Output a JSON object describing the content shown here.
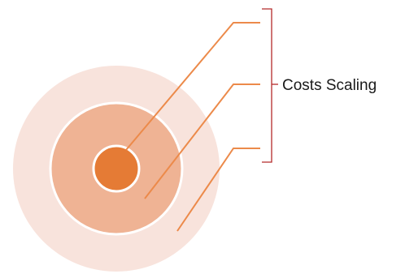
{
  "bracket_label": "Costs Scaling",
  "colors": {
    "outer_ring": "#f8e3dc",
    "middle_ring": "#efb394",
    "inner_ring": "#e57b35",
    "ring_border": "#ffffff",
    "leader_line": "#ec8a4a",
    "bracket": "#b52a2a"
  }
}
